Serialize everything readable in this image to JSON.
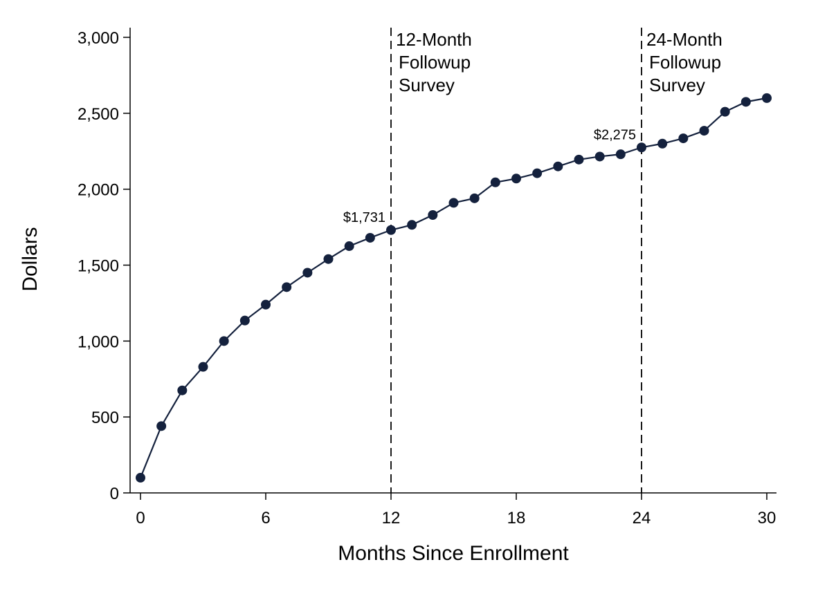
{
  "chart_data": {
    "type": "line",
    "title": "",
    "xlabel": "Months Since Enrollment",
    "ylabel": "Dollars",
    "xlim": [
      0,
      30
    ],
    "ylim": [
      0,
      3000
    ],
    "x_ticks": [
      0,
      6,
      12,
      18,
      24,
      30
    ],
    "x_tick_labels": [
      "0",
      "6",
      "12",
      "18",
      "24",
      "30"
    ],
    "y_ticks": [
      0,
      500,
      1000,
      1500,
      2000,
      2500,
      3000
    ],
    "y_tick_labels": [
      "0",
      "500",
      "1,000",
      "1,500",
      "2,000",
      "2,500",
      "3,000"
    ],
    "grid": false,
    "legend": "none",
    "series": [
      {
        "color": "#14213d",
        "x": [
          0,
          1,
          2,
          3,
          4,
          5,
          6,
          7,
          8,
          9,
          10,
          11,
          12,
          13,
          14,
          15,
          16,
          17,
          18,
          19,
          20,
          21,
          22,
          23,
          24,
          25,
          26,
          27,
          28,
          29,
          30
        ],
        "y": [
          100,
          440,
          675,
          830,
          1000,
          1135,
          1240,
          1355,
          1450,
          1540,
          1625,
          1680,
          1731,
          1765,
          1830,
          1910,
          1940,
          2045,
          2070,
          2105,
          2150,
          2195,
          2215,
          2230,
          2275,
          2300,
          2335,
          2385,
          2510,
          2575,
          2600
        ]
      }
    ],
    "data_labels": [
      {
        "x": 12,
        "y": 1731,
        "text": "$1,731"
      },
      {
        "x": 24,
        "y": 2275,
        "text": "$2,275"
      }
    ],
    "reference_lines": [
      {
        "x": 12,
        "style": "dashed",
        "label_lines": [
          "12-Month",
          "Followup",
          "Survey"
        ]
      },
      {
        "x": 24,
        "style": "dashed",
        "label_lines": [
          "24-Month",
          "Followup",
          "Survey"
        ]
      }
    ]
  }
}
